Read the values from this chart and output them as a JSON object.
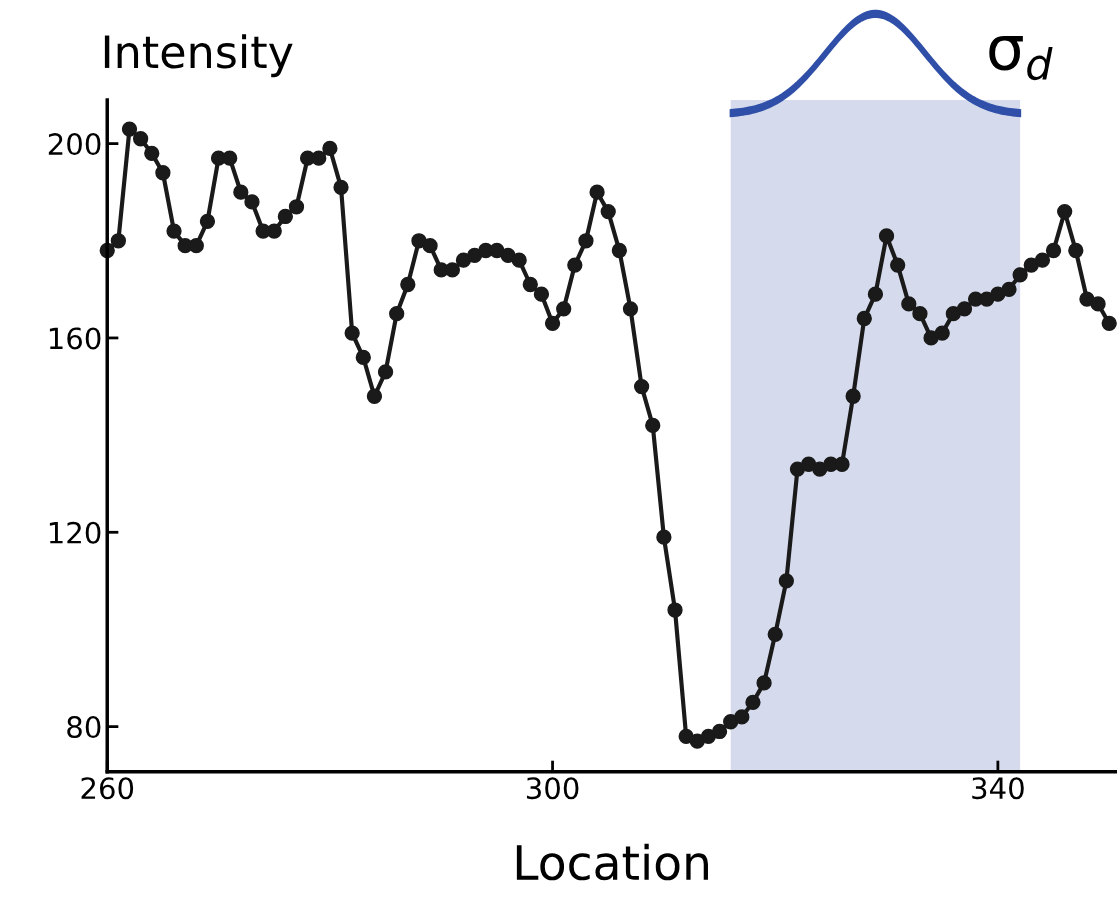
{
  "chart_data": {
    "type": "line",
    "xlabel": "Location",
    "ylabel": "Intensity",
    "x": [
      260,
      261,
      262,
      263,
      264,
      265,
      266,
      267,
      268,
      269,
      270,
      271,
      272,
      273,
      274,
      275,
      276,
      277,
      278,
      279,
      280,
      281,
      282,
      283,
      284,
      285,
      286,
      287,
      288,
      289,
      290,
      291,
      292,
      293,
      294,
      295,
      296,
      297,
      298,
      299,
      300,
      301,
      302,
      303,
      304,
      305,
      306,
      307,
      308,
      309,
      310,
      311,
      312,
      313,
      314,
      315,
      316,
      317,
      318,
      319,
      320,
      321,
      322,
      323,
      324,
      325,
      326,
      327,
      328,
      329,
      330,
      331,
      332,
      333,
      334,
      335,
      336,
      337,
      338,
      339,
      340,
      341,
      342,
      343,
      344,
      345,
      346,
      347,
      348,
      349,
      350
    ],
    "series": [
      {
        "color": "#1a1a1a",
        "values": [
          178,
          180,
          203,
          201,
          198,
          194,
          182,
          179,
          179,
          184,
          197,
          197,
          190,
          188,
          182,
          182,
          185,
          187,
          197,
          197,
          199,
          191,
          161,
          156,
          148,
          153,
          165,
          171,
          180,
          179,
          174,
          174,
          176,
          177,
          178,
          178,
          177,
          176,
          171,
          169,
          163,
          166,
          175,
          180,
          190,
          186,
          178,
          166,
          150,
          142,
          119,
          104,
          78,
          77,
          78,
          79,
          81,
          82,
          85,
          89,
          99,
          110,
          133,
          134,
          133,
          134,
          134,
          148,
          164,
          169,
          181,
          175,
          167,
          165,
          160,
          161,
          165,
          166,
          168,
          168,
          169,
          170,
          173,
          175,
          176,
          178,
          186,
          178,
          168,
          167,
          163
        ]
      }
    ],
    "xlim": [
      260,
      350.7
    ],
    "ylim": [
      70.7,
      209
    ],
    "xticks": [
      260,
      300,
      340
    ],
    "yticks": [
      80,
      120,
      160,
      200
    ],
    "bands": [
      {
        "axis": "x",
        "from": 316,
        "to": 342,
        "color": "#d5dbec"
      }
    ],
    "annotations": [
      "σ$_{d}$"
    ],
    "marker": "circle",
    "line_style": "solid",
    "grid": false,
    "legend": false
  }
}
